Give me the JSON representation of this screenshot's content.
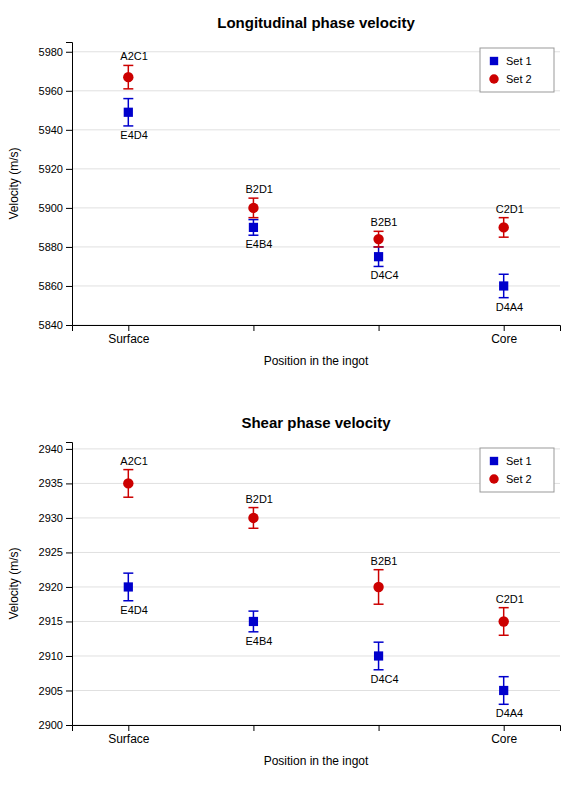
{
  "chart_data": [
    {
      "type": "scatter",
      "title": "Longitudinal phase velocity",
      "x_label": "Position in the ingot",
      "y_label": "Velocity (m/s)",
      "categories": [
        "Surface",
        null,
        null,
        "Core"
      ],
      "ylim": [
        5840,
        5985
      ],
      "yticks": [
        5840,
        5860,
        5880,
        5900,
        5920,
        5940,
        5960,
        5980
      ],
      "grid": true,
      "legend": "upper right",
      "series": [
        {
          "name": "Set 1",
          "color": "#0000cc",
          "marker": "square",
          "values": [
            5949,
            5890,
            5875,
            5860
          ],
          "errors": [
            7,
            4,
            5,
            6
          ],
          "annotations": [
            "E4D4",
            "E4B4",
            "D4C4",
            "D4A4"
          ]
        },
        {
          "name": "Set 2",
          "color": "#cc0000",
          "marker": "circle",
          "values": [
            5967,
            5900,
            5884,
            5890
          ],
          "errors": [
            6,
            5,
            4,
            5
          ],
          "annotations": [
            "A2C1",
            "B2D1",
            "B2B1",
            "C2D1"
          ]
        }
      ]
    },
    {
      "type": "scatter",
      "title": "Shear phase velocity",
      "x_label": "Position in the ingot",
      "y_label": "Velocity (m/s)",
      "categories": [
        "Surface",
        null,
        null,
        "Core"
      ],
      "ylim": [
        2900,
        2941
      ],
      "yticks": [
        2900,
        2905,
        2910,
        2915,
        2920,
        2925,
        2930,
        2935,
        2940
      ],
      "grid": true,
      "legend": "upper right",
      "series": [
        {
          "name": "Set 1",
          "color": "#0000cc",
          "marker": "square",
          "values": [
            2920,
            2915,
            2910,
            2905
          ],
          "errors": [
            2,
            1.5,
            2,
            2
          ],
          "annotations": [
            "E4D4",
            "E4B4",
            "D4C4",
            "D4A4"
          ]
        },
        {
          "name": "Set 2",
          "color": "#cc0000",
          "marker": "circle",
          "values": [
            2935,
            2930,
            2920,
            2915
          ],
          "errors": [
            2,
            1.5,
            2.5,
            2
          ],
          "annotations": [
            "A2C1",
            "B2D1",
            "B2B1",
            "C2D1"
          ]
        }
      ]
    }
  ]
}
